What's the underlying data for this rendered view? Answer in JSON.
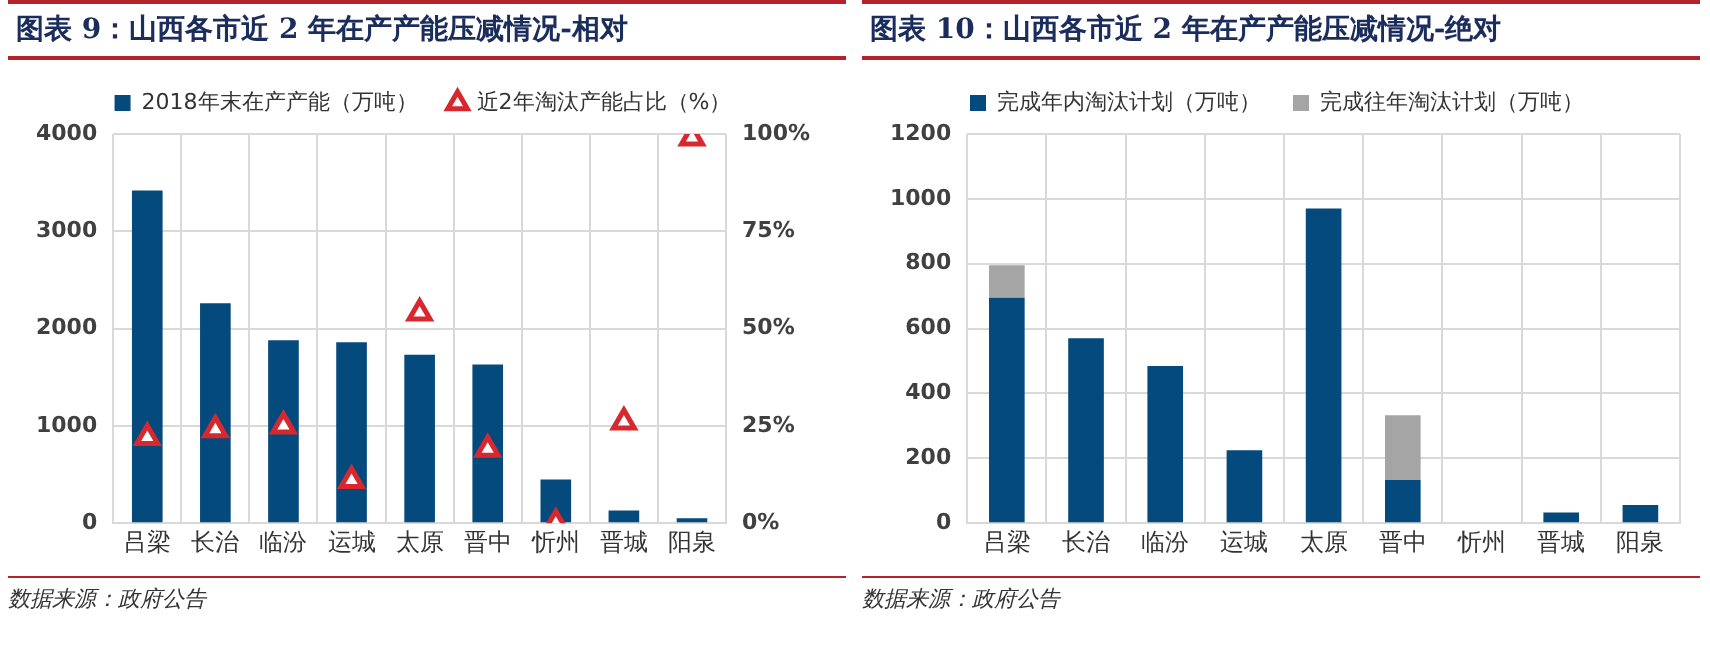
{
  "chart_data": [
    {
      "type": "bar",
      "title": "图表 9：山西各市近 2 年在产产能压减情况-相对",
      "categories": [
        "吕梁",
        "长治",
        "临汾",
        "运城",
        "太原",
        "晋中",
        "忻州",
        "晋城",
        "阳泉"
      ],
      "series": [
        {
          "name": "2018年末在产产能（万吨）",
          "color": "#054a7c",
          "values": [
            3420,
            2260,
            1880,
            1860,
            1730,
            1630,
            450,
            130,
            50
          ]
        },
        {
          "name": "近2年淘汰产能占比（%）",
          "type": "scatter",
          "axis": "y2",
          "color": "#d7282f",
          "values": [
            22,
            24,
            25,
            11,
            54,
            19,
            0,
            26,
            99
          ]
        }
      ],
      "ylim": [
        0,
        4000
      ],
      "yticks": [
        0,
        1000,
        2000,
        3000,
        4000
      ],
      "y2lim": [
        0,
        100
      ],
      "y2ticks": [
        {
          "value": 0,
          "label": "0%"
        },
        {
          "value": 25,
          "label": "25%"
        },
        {
          "value": 50,
          "label": "50%"
        },
        {
          "value": 75,
          "label": "75%"
        },
        {
          "value": 100,
          "label": "100%"
        }
      ],
      "marker": "triangle",
      "grid": true,
      "legend": "top",
      "annotations": [
        "数据来源：政府公告"
      ]
    },
    {
      "type": "bar",
      "title": "图表 10：山西各市近 2 年在产产能压减情况-绝对",
      "categories": [
        "吕梁",
        "长治",
        "临汾",
        "运城",
        "太原",
        "晋中",
        "忻州",
        "晋城",
        "阳泉"
      ],
      "stacked": true,
      "series": [
        {
          "name": "完成年内淘汰计划（万吨）",
          "color": "#054a7c",
          "values": [
            695,
            570,
            485,
            225,
            970,
            133,
            0,
            33,
            56
          ]
        },
        {
          "name": "完成往年淘汰计划（万吨）",
          "color": "#a5a5a5",
          "values": [
            100,
            0,
            0,
            0,
            0,
            200,
            0,
            0,
            0
          ]
        }
      ],
      "ylim": [
        0,
        1200
      ],
      "yticks": [
        0,
        200,
        400,
        600,
        800,
        1000,
        1200
      ],
      "grid": true,
      "legend": "top",
      "annotations": [
        "数据来源：政府公告"
      ]
    }
  ]
}
